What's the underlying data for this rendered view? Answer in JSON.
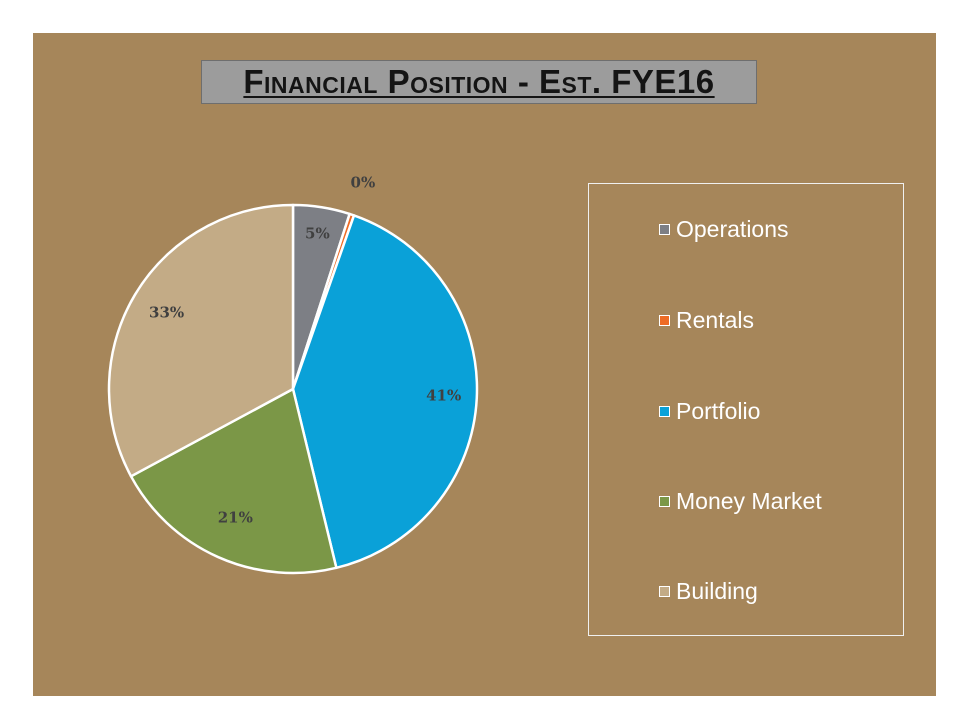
{
  "chart_data": {
    "type": "pie",
    "title": "Financial Position - Est. FYE16",
    "categories": [
      "Operations",
      "Rentals",
      "Portfolio",
      "Money Market",
      "Building"
    ],
    "values": [
      5,
      0.4,
      41,
      21,
      33
    ],
    "data_labels": [
      "5%",
      "0%",
      "41%",
      "21%",
      "33%"
    ],
    "colors": [
      "#7d7f85",
      "#ee6b24",
      "#0aa1d8",
      "#7b9747",
      "#c3ab86"
    ],
    "legend_position": "right",
    "start_angle_deg": 0,
    "direction": "clockwise"
  },
  "colors": {
    "slide_background": "#a6865a",
    "title_background": "#9c9c9c"
  }
}
